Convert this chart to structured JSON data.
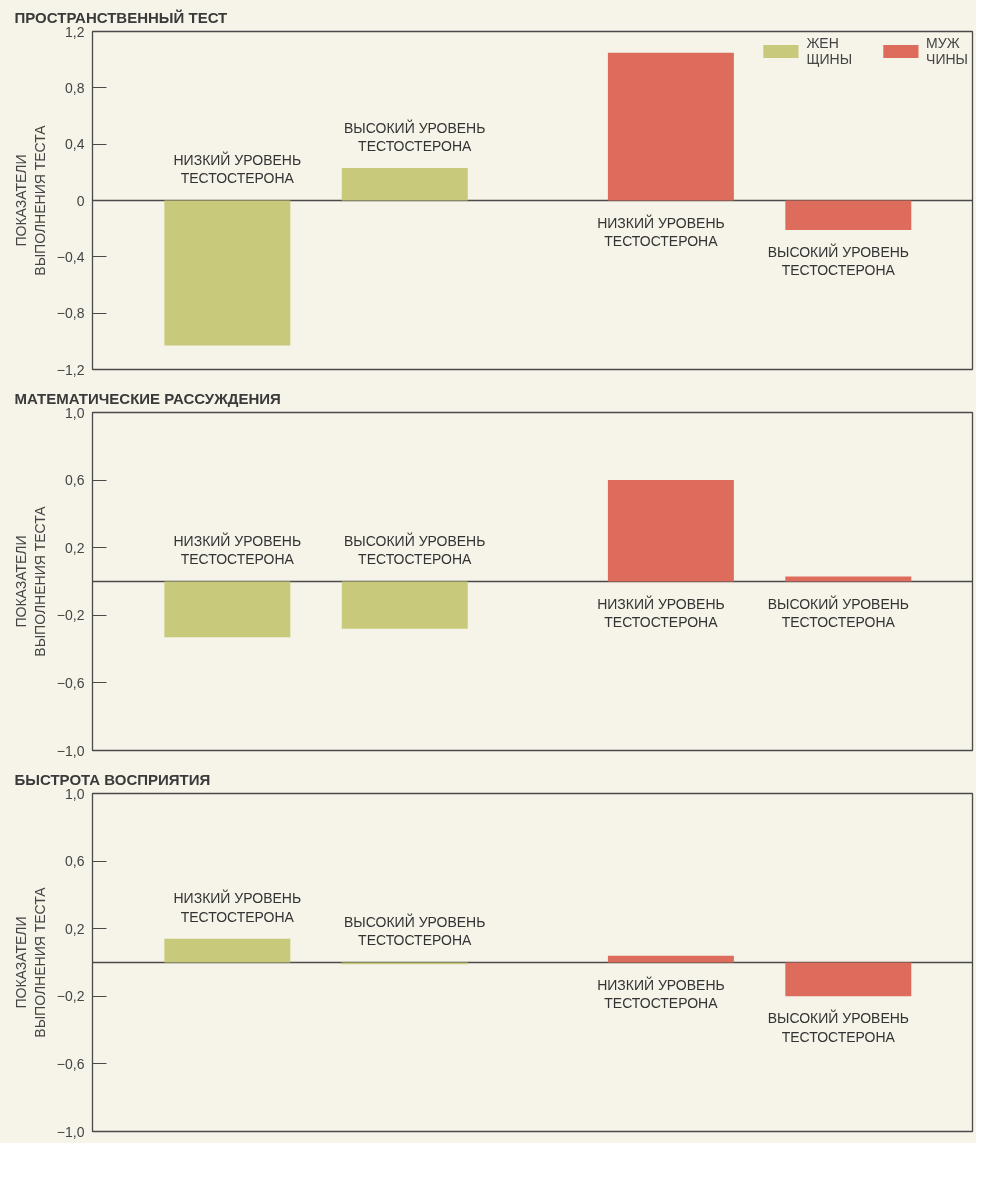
{
  "chart_data": [
    {
      "type": "bar",
      "title": "ПРОСТРАНСТВЕННЫЙ ТЕСТ",
      "ylabel": "ПОКАЗАТЕЛИ\nВЫПОЛНЕНИЯ ТЕСТА",
      "categories": [
        "НИЗКИЙ УРОВЕНЬ\nТЕСТОСТЕРОНА",
        "ВЫСОКИЙ УРОВЕНЬ\nТЕСТОСТЕРОНА",
        "НИЗКИЙ УРОВЕНЬ\nТЕСТОСТЕРОНА",
        "ВЫСОКИЙ УРОВЕНЬ\nТЕСТОСТЕРОНА"
      ],
      "series": [
        {
          "name": "ЖЕН\nЩИНЫ",
          "color": "#c8c97b",
          "values": [
            -1.03,
            0.23,
            null,
            null
          ]
        },
        {
          "name": "МУЖ\nЧИНЫ",
          "color": "#de6c5c",
          "values": [
            null,
            null,
            1.05,
            -0.21
          ]
        }
      ],
      "stacked": true,
      "ylim": [
        -1.2,
        1.2
      ],
      "yticks": [
        {
          "value": 1.2,
          "label": "1,2"
        },
        {
          "value": 0.8,
          "label": "0,8"
        },
        {
          "value": 0.4,
          "label": "0,4"
        },
        0,
        {
          "value": -0.4,
          "label": "−0,4"
        },
        {
          "value": -0.8,
          "label": "−0,8"
        },
        {
          "value": -1.2,
          "label": "−1,2"
        }
      ],
      "ref_lines": [
        {
          "axis": "y",
          "value": 0
        }
      ],
      "legend": "top right",
      "tick_labels": "y"
    },
    {
      "type": "bar",
      "title": "МАТЕМАТИЧЕСКИЕ РАССУЖДЕНИЯ",
      "ylabel": "ПОКАЗАТЕЛИ\nВЫПОЛНЕНИЯ ТЕСТА",
      "categories": [
        "НИЗКИЙ УРОВЕНЬ\nТЕСТОСТЕРОНА",
        "ВЫСОКИЙ УРОВЕНЬ\nТЕСТОСТЕРОНА",
        "НИЗКИЙ УРОВЕНЬ\nТЕСТОСТЕРОНА",
        "ВЫСОКИЙ УРОВЕНЬ\nТЕСТОСТЕРОНА"
      ],
      "series": [
        {
          "color": "#c8c97b",
          "values": [
            -0.33,
            -0.28,
            null,
            null
          ]
        },
        {
          "color": "#de6c5c",
          "values": [
            null,
            null,
            0.6,
            0.03
          ]
        }
      ],
      "stacked": true,
      "ylim": [
        -1.0,
        1.0
      ],
      "yticks": [
        {
          "value": 1.0,
          "label": "1,0"
        },
        {
          "value": 0.6,
          "label": "0,6"
        },
        {
          "value": 0.2,
          "label": "0,2"
        },
        {
          "value": -0.2,
          "label": "−0,2"
        },
        {
          "value": -0.6,
          "label": "−0,6"
        },
        {
          "value": -1.0,
          "label": "−1,0"
        }
      ],
      "ref_lines": [
        {
          "axis": "y",
          "value": 0
        }
      ],
      "tick_labels": "y"
    },
    {
      "type": "bar",
      "title": "БЫСТРОТА ВОСПРИЯТИЯ",
      "ylabel": "ПОКАЗАТЕЛИ\nВЫПОЛНЕНИЯ ТЕСТА",
      "categories": [
        "НИЗКИЙ УРОВЕНЬ\nТЕСТОСТЕРОНА",
        "ВЫСОКИЙ УРОВЕНЬ\nТЕСТОСТЕРОНА",
        "НИЗКИЙ УРОВЕНЬ\nТЕСТОСТЕРОНА",
        "ВЫСОКИЙ УРОВЕНЬ\nТЕСТОСТЕРОНА"
      ],
      "series": [
        {
          "color": "#c8c97b",
          "values": [
            0.14,
            -0.01,
            null,
            null
          ]
        },
        {
          "color": "#de6c5c",
          "values": [
            null,
            null,
            0.04,
            -0.2
          ]
        }
      ],
      "stacked": true,
      "ylim": [
        -1.0,
        1.0
      ],
      "yticks": [
        {
          "value": 1.0,
          "label": "1,0"
        },
        {
          "value": 0.6,
          "label": "0,6"
        },
        {
          "value": 0.2,
          "label": "0,2"
        },
        {
          "value": -0.2,
          "label": "−0,2"
        },
        {
          "value": -0.6,
          "label": "−0,6"
        },
        {
          "value": -1.0,
          "label": "−1,0"
        }
      ],
      "ref_lines": [
        {
          "axis": "y",
          "value": 0
        }
      ],
      "tick_labels": "y"
    }
  ]
}
